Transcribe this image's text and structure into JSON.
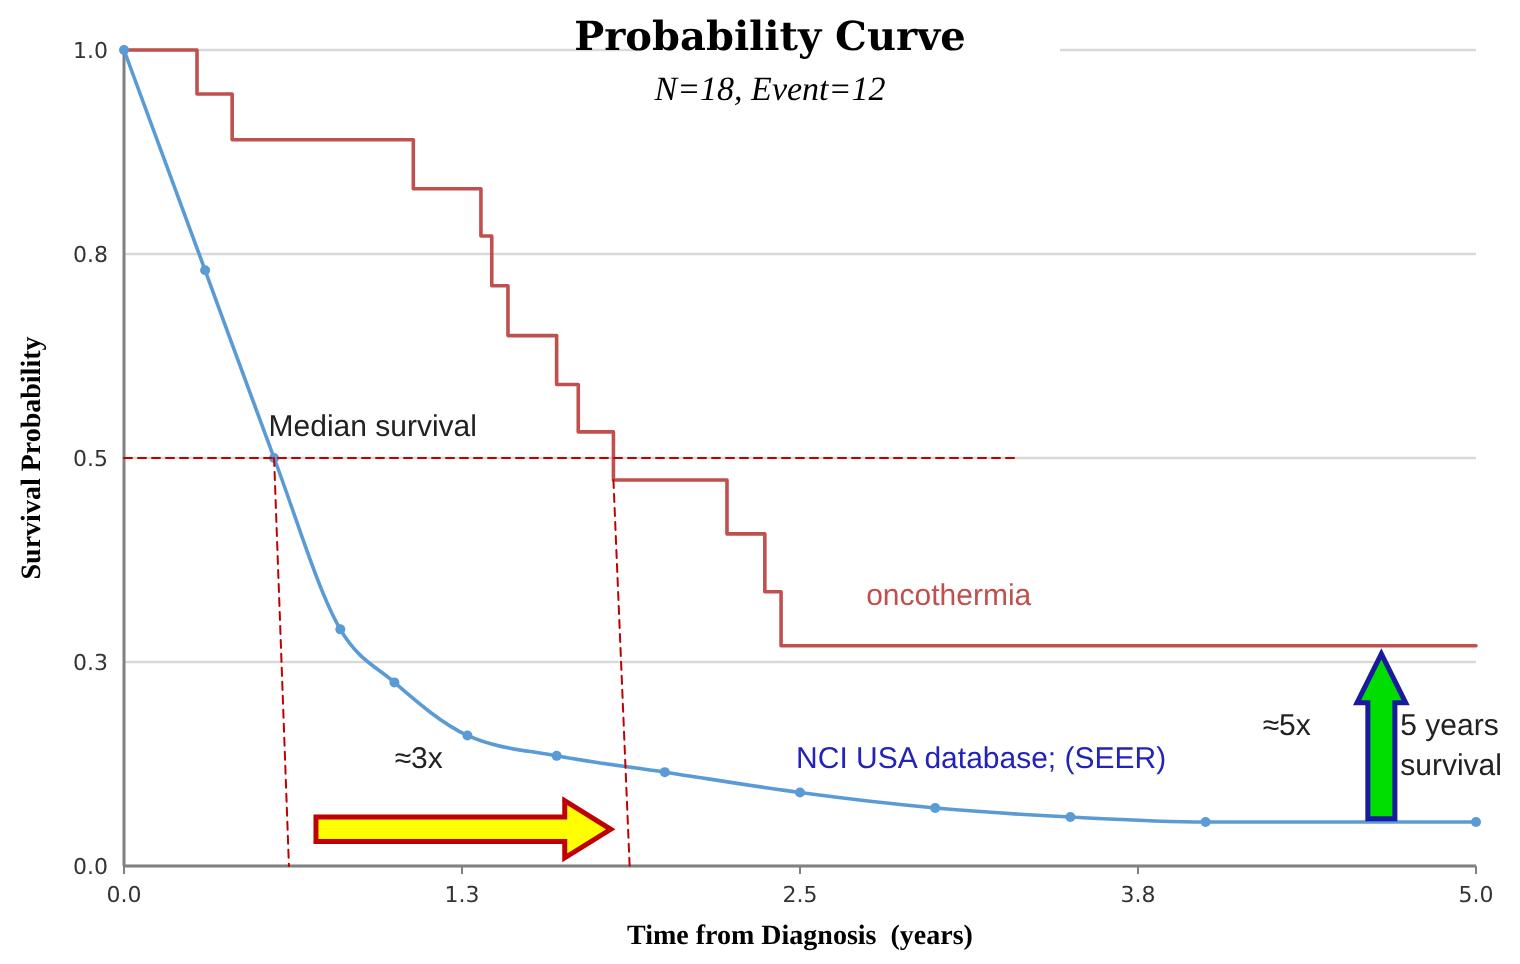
{
  "chart_data": {
    "type": "line",
    "title": "Probability Curve",
    "subtitle": "N=18, Event=12",
    "xlabel": "Time from Diagnosis  (years)",
    "ylabel": "Survival Probability",
    "xlim": [
      0,
      5
    ],
    "xticks": [
      {
        "value": 0,
        "label": "0.0"
      },
      {
        "value": 1.25,
        "label": "1.3"
      },
      {
        "value": 2.5,
        "label": "2.5"
      },
      {
        "value": 3.75,
        "label": "3.8"
      },
      {
        "value": 5,
        "label": "5.0"
      }
    ],
    "ylim": [
      0,
      1
    ],
    "yticks": [
      {
        "value": 0,
        "label": "0.0"
      },
      {
        "value": 0.25,
        "label": "0.3"
      },
      {
        "value": 0.5,
        "label": "0.5"
      },
      {
        "value": 0.75,
        "label": "0.8"
      },
      {
        "value": 1,
        "label": "1.0"
      }
    ],
    "grid": "y",
    "series": [
      {
        "name": "oncothermia",
        "type": "step",
        "color": "#c0504d",
        "marker": "none",
        "line_style": "solid",
        "x": [
          0,
          0.27,
          0.4,
          1.07,
          1.32,
          1.36,
          1.42,
          1.6,
          1.68,
          1.81,
          2.23,
          2.37,
          2.43,
          5
        ],
        "values": [
          1,
          0.946,
          0.89,
          0.83,
          0.772,
          0.711,
          0.65,
          0.59,
          0.532,
          0.473,
          0.407,
          0.336,
          0.27,
          0.27
        ]
      },
      {
        "name": "NCI USA database; (SEER)",
        "color": "#5b9bd5",
        "marker": "circle",
        "line_style": "solid",
        "x": [
          0,
          0.3,
          0.555,
          0.8,
          1,
          1.27,
          1.6,
          2,
          2.5,
          3,
          3.5,
          4,
          5
        ],
        "values": [
          1,
          0.73,
          0.5,
          0.29,
          0.225,
          0.16,
          0.135,
          0.115,
          0.09,
          0.071,
          0.06,
          0.054,
          0.054
        ]
      },
      {
        "color": "#c00000",
        "marker": "none",
        "line_style": "dashed",
        "x": [
          0,
          3.3
        ],
        "values": [
          0.5,
          0.5
        ]
      },
      {
        "color": "#c00000",
        "marker": "none",
        "line_style": "dashed",
        "x": [
          0.555,
          0.61
        ],
        "values": [
          0.5,
          0
        ]
      },
      {
        "color": "#c00000",
        "marker": "none",
        "line_style": "dashed",
        "x": [
          1.81,
          1.87
        ],
        "values": [
          0.473,
          0
        ]
      }
    ],
    "annotations": [
      "Median survival",
      "≈3x",
      "≈5x",
      "5 years survival"
    ]
  }
}
